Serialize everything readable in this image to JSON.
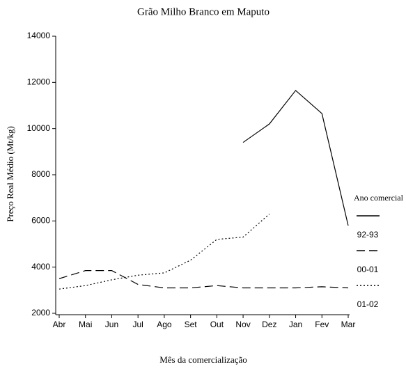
{
  "chart_data": {
    "type": "line",
    "title": "Grão Milho Branco em Maputo",
    "x_label": "Mês da comercialização",
    "y_label": "Preço Real Médio (Mt/kg)",
    "legend_title": "Ano comercial",
    "legend": "right",
    "categories": [
      "Abr",
      "Mai",
      "Jun",
      "Jul",
      "Ago",
      "Set",
      "Out",
      "Nov",
      "Dez",
      "Jan",
      "Fev",
      "Mar"
    ],
    "series": [
      {
        "name": "92-93",
        "color": "#000000",
        "dash": "solid",
        "values": [
          null,
          null,
          null,
          null,
          null,
          null,
          null,
          9400,
          10200,
          11650,
          10650,
          5800
        ]
      },
      {
        "name": "00-01",
        "color": "#000000",
        "dash": "dashed",
        "values": [
          3500,
          3850,
          3850,
          3250,
          3100,
          3100,
          3200,
          3100,
          3100,
          3100,
          3150,
          3100
        ]
      },
      {
        "name": "01-02",
        "color": "#000000",
        "dash": "dotted",
        "values": [
          3050,
          3200,
          3450,
          3650,
          3750,
          4300,
          5200,
          5300,
          6300,
          null,
          null,
          null
        ]
      }
    ],
    "ylim": [
      2000,
      14000
    ],
    "yticks": [
      2000,
      4000,
      6000,
      8000,
      10000,
      12000,
      14000
    ]
  }
}
